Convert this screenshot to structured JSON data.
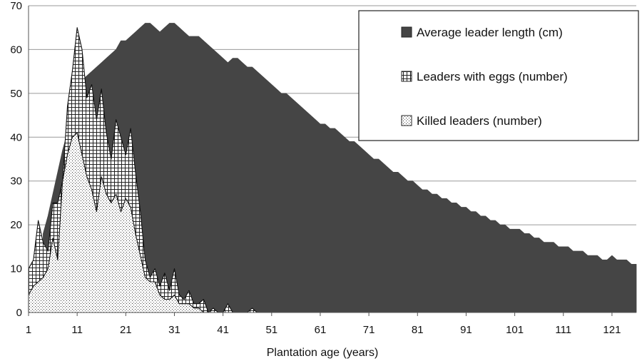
{
  "chart_data": {
    "type": "area",
    "xlabel": "Plantation age (years)",
    "ylabel": "",
    "xlim": [
      1,
      126
    ],
    "ylim": [
      0,
      70
    ],
    "x_ticks": [
      1,
      11,
      21,
      31,
      41,
      51,
      61,
      71,
      81,
      91,
      101,
      111,
      121
    ],
    "y_ticks": [
      0,
      10,
      20,
      30,
      40,
      50,
      60,
      70
    ],
    "grid": "horizontal",
    "legend_position": "top-right",
    "series": [
      {
        "name": "Average leader length (cm)",
        "color": "#454545",
        "pattern": "solid",
        "points": [
          [
            4,
            18
          ],
          [
            5,
            22
          ],
          [
            6,
            27
          ],
          [
            7,
            32
          ],
          [
            8,
            37
          ],
          [
            9,
            41
          ],
          [
            10,
            46
          ],
          [
            11,
            50
          ],
          [
            12,
            53
          ],
          [
            13,
            54
          ],
          [
            14,
            55
          ],
          [
            15,
            56
          ],
          [
            16,
            57
          ],
          [
            17,
            58
          ],
          [
            18,
            59
          ],
          [
            19,
            60
          ],
          [
            20,
            62
          ],
          [
            21,
            62
          ],
          [
            22,
            63
          ],
          [
            23,
            64
          ],
          [
            24,
            65
          ],
          [
            25,
            66
          ],
          [
            26,
            66
          ],
          [
            27,
            65
          ],
          [
            28,
            64
          ],
          [
            29,
            65
          ],
          [
            30,
            66
          ],
          [
            31,
            66
          ],
          [
            32,
            65
          ],
          [
            33,
            64
          ],
          [
            34,
            63
          ],
          [
            35,
            63
          ],
          [
            36,
            63
          ],
          [
            37,
            62
          ],
          [
            38,
            61
          ],
          [
            39,
            60
          ],
          [
            40,
            59
          ],
          [
            41,
            58
          ],
          [
            42,
            57
          ],
          [
            43,
            58
          ],
          [
            44,
            58
          ],
          [
            45,
            57
          ],
          [
            46,
            56
          ],
          [
            47,
            56
          ],
          [
            48,
            55
          ],
          [
            49,
            54
          ],
          [
            50,
            53
          ],
          [
            51,
            52
          ],
          [
            52,
            51
          ],
          [
            53,
            50
          ],
          [
            54,
            50
          ],
          [
            55,
            49
          ],
          [
            56,
            48
          ],
          [
            57,
            47
          ],
          [
            58,
            46
          ],
          [
            59,
            45
          ],
          [
            60,
            44
          ],
          [
            61,
            43
          ],
          [
            62,
            43
          ],
          [
            63,
            42
          ],
          [
            64,
            42
          ],
          [
            65,
            41
          ],
          [
            66,
            40
          ],
          [
            67,
            39
          ],
          [
            68,
            39
          ],
          [
            69,
            38
          ],
          [
            70,
            37
          ],
          [
            71,
            36
          ],
          [
            72,
            35
          ],
          [
            73,
            35
          ],
          [
            74,
            34
          ],
          [
            75,
            33
          ],
          [
            76,
            32
          ],
          [
            77,
            32
          ],
          [
            78,
            31
          ],
          [
            79,
            30
          ],
          [
            80,
            30
          ],
          [
            81,
            29
          ],
          [
            82,
            28
          ],
          [
            83,
            28
          ],
          [
            84,
            27
          ],
          [
            85,
            27
          ],
          [
            86,
            26
          ],
          [
            87,
            26
          ],
          [
            88,
            25
          ],
          [
            89,
            25
          ],
          [
            90,
            24
          ],
          [
            91,
            24
          ],
          [
            92,
            23
          ],
          [
            93,
            23
          ],
          [
            94,
            22
          ],
          [
            95,
            22
          ],
          [
            96,
            21
          ],
          [
            97,
            21
          ],
          [
            98,
            20
          ],
          [
            99,
            20
          ],
          [
            100,
            19
          ],
          [
            101,
            19
          ],
          [
            102,
            19
          ],
          [
            103,
            18
          ],
          [
            104,
            18
          ],
          [
            105,
            17
          ],
          [
            106,
            17
          ],
          [
            107,
            16
          ],
          [
            108,
            16
          ],
          [
            109,
            16
          ],
          [
            110,
            15
          ],
          [
            111,
            15
          ],
          [
            112,
            15
          ],
          [
            113,
            14
          ],
          [
            114,
            14
          ],
          [
            115,
            14
          ],
          [
            116,
            13
          ],
          [
            117,
            13
          ],
          [
            118,
            13
          ],
          [
            119,
            12
          ],
          [
            120,
            12
          ],
          [
            121,
            13
          ],
          [
            122,
            12
          ],
          [
            123,
            12
          ],
          [
            124,
            12
          ],
          [
            125,
            11
          ],
          [
            126,
            11
          ]
        ]
      },
      {
        "name": "Leaders with eggs (number)",
        "color": "#808080",
        "pattern": "grid",
        "points": [
          [
            1,
            10
          ],
          [
            2,
            12
          ],
          [
            3,
            21
          ],
          [
            4,
            16
          ],
          [
            5,
            14
          ],
          [
            6,
            25
          ],
          [
            7,
            25
          ],
          [
            8,
            30
          ],
          [
            9,
            47
          ],
          [
            10,
            55
          ],
          [
            11,
            65
          ],
          [
            12,
            60
          ],
          [
            13,
            49
          ],
          [
            14,
            52
          ],
          [
            15,
            44
          ],
          [
            16,
            51
          ],
          [
            17,
            41
          ],
          [
            18,
            35
          ],
          [
            19,
            44
          ],
          [
            20,
            40
          ],
          [
            21,
            36
          ],
          [
            22,
            42
          ],
          [
            23,
            32
          ],
          [
            24,
            23
          ],
          [
            25,
            12
          ],
          [
            26,
            8
          ],
          [
            27,
            10
          ],
          [
            28,
            6
          ],
          [
            29,
            9
          ],
          [
            30,
            5
          ],
          [
            31,
            10
          ],
          [
            32,
            4
          ],
          [
            33,
            3
          ],
          [
            34,
            5
          ],
          [
            35,
            2
          ],
          [
            36,
            2
          ],
          [
            37,
            3
          ],
          [
            38,
            0
          ],
          [
            39,
            1
          ],
          [
            40,
            0
          ],
          [
            41,
            0
          ],
          [
            42,
            2
          ],
          [
            43,
            0
          ],
          [
            44,
            0
          ],
          [
            45,
            0
          ],
          [
            46,
            0
          ],
          [
            47,
            1
          ],
          [
            48,
            0
          ]
        ]
      },
      {
        "name": "Killed leaders (number)",
        "color": "#cccccc",
        "pattern": "dots",
        "points": [
          [
            1,
            4
          ],
          [
            2,
            6
          ],
          [
            3,
            7
          ],
          [
            4,
            8
          ],
          [
            5,
            10
          ],
          [
            6,
            17
          ],
          [
            7,
            12
          ],
          [
            8,
            30
          ],
          [
            9,
            36
          ],
          [
            10,
            40
          ],
          [
            11,
            41
          ],
          [
            12,
            36
          ],
          [
            13,
            31
          ],
          [
            14,
            28
          ],
          [
            15,
            23
          ],
          [
            16,
            31
          ],
          [
            17,
            27
          ],
          [
            18,
            25
          ],
          [
            19,
            27
          ],
          [
            20,
            23
          ],
          [
            21,
            26
          ],
          [
            22,
            24
          ],
          [
            23,
            18
          ],
          [
            24,
            13
          ],
          [
            25,
            8
          ],
          [
            26,
            7
          ],
          [
            27,
            7
          ],
          [
            28,
            4
          ],
          [
            29,
            3
          ],
          [
            30,
            3
          ],
          [
            31,
            4
          ],
          [
            32,
            2
          ],
          [
            33,
            2
          ],
          [
            34,
            2
          ],
          [
            35,
            1
          ],
          [
            36,
            1
          ],
          [
            37,
            0
          ],
          [
            38,
            0
          ]
        ]
      }
    ]
  }
}
